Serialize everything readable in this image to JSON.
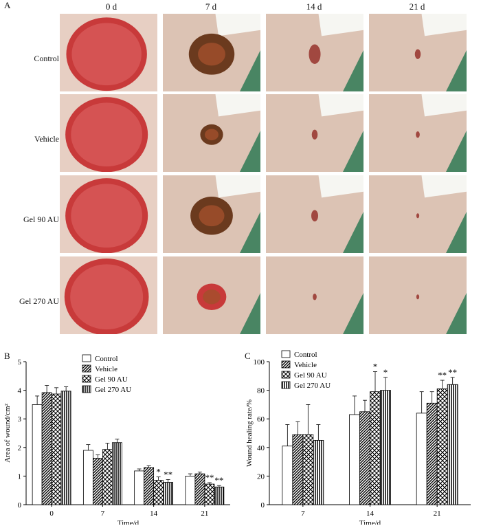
{
  "panel_labels": {
    "a": "A",
    "b": "B",
    "c": "C"
  },
  "photo_grid": {
    "columns": [
      "0 d",
      "7 d",
      "14 d",
      "21 d"
    ],
    "rows": [
      "Control",
      "Vehicle",
      "Gel 90 AU",
      "Gel 270 AU"
    ]
  },
  "colors": {
    "skin": "#dcc3b4",
    "wound": "#c83a3a",
    "scab": "#6b3a1e",
    "drape": "#2f7a55"
  },
  "chart_data": [
    {
      "type": "bar",
      "panel": "B",
      "categories": [
        "0",
        "7",
        "14",
        "21"
      ],
      "xlabel": "Time/d",
      "ylabel": "Area of wound/cm²",
      "ylim": [
        0,
        5
      ],
      "yticks": [
        "0",
        "1",
        "2",
        "3",
        "4",
        "5"
      ],
      "legend_position": "top-right",
      "series": [
        {
          "name": "Control",
          "pattern": "none",
          "values": [
            3.5,
            1.9,
            1.18,
            1.0
          ],
          "errors": [
            0.3,
            0.2,
            0.07,
            0.08
          ]
        },
        {
          "name": "Vehicle",
          "pattern": "diagonal",
          "values": [
            3.92,
            1.62,
            1.3,
            1.08
          ],
          "errors": [
            0.25,
            0.12,
            0.06,
            0.06
          ]
        },
        {
          "name": "Gel 90 AU",
          "pattern": "cross-diagonal",
          "values": [
            3.87,
            1.93,
            0.85,
            0.72
          ],
          "errors": [
            0.22,
            0.22,
            0.12,
            0.05
          ]
        },
        {
          "name": "Gel 270 AU",
          "pattern": "vertical",
          "values": [
            3.97,
            2.17,
            0.78,
            0.62
          ],
          "errors": [
            0.15,
            0.12,
            0.1,
            0.05
          ]
        }
      ],
      "significance": [
        {
          "category": 2,
          "series": 2,
          "label": "*"
        },
        {
          "category": 2,
          "series": 3,
          "label": "**"
        },
        {
          "category": 3,
          "series": 2,
          "label": "**"
        },
        {
          "category": 3,
          "series": 3,
          "label": "**"
        }
      ]
    },
    {
      "type": "bar",
      "panel": "C",
      "categories": [
        "7",
        "14",
        "21"
      ],
      "xlabel": "Time/d",
      "ylabel": "Wound healing rate/%",
      "ylim": [
        0,
        100
      ],
      "yticks": [
        "0",
        "20",
        "40",
        "60",
        "80",
        "100"
      ],
      "legend_position": "top-left",
      "series": [
        {
          "name": "Control",
          "pattern": "none",
          "values": [
            41,
            63,
            64
          ],
          "errors": [
            15,
            13,
            15
          ]
        },
        {
          "name": "Vehicle",
          "pattern": "diagonal",
          "values": [
            49,
            65,
            71
          ],
          "errors": [
            9,
            8,
            8
          ]
        },
        {
          "name": "Gel 90 AU",
          "pattern": "cross-diagonal",
          "values": [
            49,
            79,
            81
          ],
          "errors": [
            21,
            14,
            6
          ]
        },
        {
          "name": "Gel 270 AU",
          "pattern": "vertical",
          "values": [
            45,
            80,
            84
          ],
          "errors": [
            11,
            9,
            5
          ]
        }
      ],
      "significance": [
        {
          "category": 1,
          "series": 2,
          "label": "*"
        },
        {
          "category": 1,
          "series": 3,
          "label": "*"
        },
        {
          "category": 2,
          "series": 2,
          "label": "**"
        },
        {
          "category": 2,
          "series": 3,
          "label": "**"
        }
      ]
    }
  ]
}
